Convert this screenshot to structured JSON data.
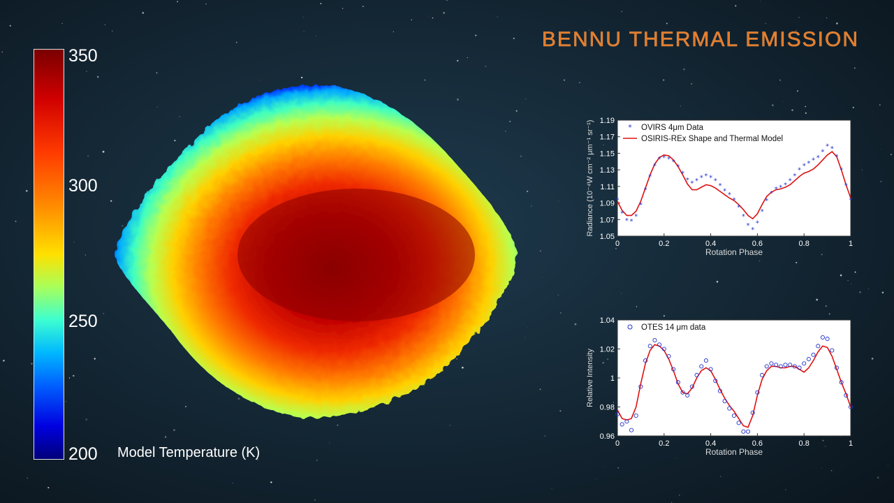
{
  "title": "BENNU THERMAL EMISSION",
  "colorbar": {
    "label": "Model Temperature (K)",
    "ticks": [
      "350",
      "300",
      "250",
      "200"
    ],
    "colors": [
      "#7a0000",
      "#d00000",
      "#ff3a00",
      "#ff8a00",
      "#ffe000",
      "#a8ff5a",
      "#3dffd0",
      "#00b8ff",
      "#0060ff",
      "#0000e0",
      "#00007a"
    ]
  },
  "chart_data": [
    {
      "type": "line",
      "xlabel": "Rotation Phase",
      "ylabel": "Radiance (10⁻⁴W cm⁻² μm⁻¹ sr⁻¹)",
      "xlim": [
        0,
        1
      ],
      "ylim": [
        1.05,
        1.19
      ],
      "xticks": [
        "0",
        "0.2",
        "0.4",
        "0.6",
        "0.8",
        "1"
      ],
      "yticks": [
        "1.05",
        "1.07",
        "1.09",
        "1.11",
        "1.13",
        "1.15",
        "1.17",
        "1.19"
      ],
      "legend_position": "top-left",
      "series": [
        {
          "name": "OVIRS 4μm Data",
          "style": "asterisk",
          "color": "#2233cc",
          "x": [
            0,
            0.02,
            0.04,
            0.06,
            0.08,
            0.1,
            0.12,
            0.14,
            0.16,
            0.18,
            0.2,
            0.22,
            0.24,
            0.26,
            0.28,
            0.3,
            0.32,
            0.34,
            0.36,
            0.38,
            0.4,
            0.42,
            0.44,
            0.46,
            0.48,
            0.5,
            0.52,
            0.54,
            0.56,
            0.58,
            0.6,
            0.62,
            0.64,
            0.66,
            0.68,
            0.7,
            0.72,
            0.74,
            0.76,
            0.78,
            0.8,
            0.82,
            0.84,
            0.86,
            0.88,
            0.9,
            0.92,
            0.94,
            0.96,
            0.98,
            1
          ],
          "y": [
            1.094,
            1.078,
            1.069,
            1.068,
            1.074,
            1.088,
            1.106,
            1.122,
            1.135,
            1.143,
            1.145,
            1.143,
            1.14,
            1.134,
            1.126,
            1.118,
            1.114,
            1.117,
            1.121,
            1.123,
            1.121,
            1.117,
            1.111,
            1.105,
            1.1,
            1.094,
            1.085,
            1.074,
            1.063,
            1.058,
            1.066,
            1.08,
            1.093,
            1.102,
            1.107,
            1.109,
            1.112,
            1.117,
            1.123,
            1.13,
            1.135,
            1.138,
            1.142,
            1.145,
            1.152,
            1.159,
            1.156,
            1.146,
            1.13,
            1.111,
            1.094
          ]
        },
        {
          "name": "OSIRIS-REx Shape and Thermal Model",
          "style": "line",
          "color": "#dd1111",
          "x": [
            0,
            0.02,
            0.04,
            0.06,
            0.08,
            0.1,
            0.12,
            0.14,
            0.16,
            0.18,
            0.2,
            0.22,
            0.24,
            0.26,
            0.28,
            0.3,
            0.32,
            0.34,
            0.36,
            0.38,
            0.4,
            0.42,
            0.44,
            0.46,
            0.48,
            0.5,
            0.52,
            0.54,
            0.56,
            0.58,
            0.6,
            0.62,
            0.64,
            0.66,
            0.68,
            0.7,
            0.72,
            0.74,
            0.76,
            0.78,
            0.8,
            0.82,
            0.84,
            0.86,
            0.88,
            0.9,
            0.92,
            0.94,
            0.96,
            0.98,
            1
          ],
          "y": [
            1.092,
            1.081,
            1.075,
            1.075,
            1.08,
            1.092,
            1.108,
            1.124,
            1.137,
            1.145,
            1.148,
            1.147,
            1.142,
            1.134,
            1.124,
            1.113,
            1.106,
            1.106,
            1.109,
            1.112,
            1.111,
            1.108,
            1.104,
            1.1,
            1.096,
            1.093,
            1.088,
            1.082,
            1.075,
            1.071,
            1.077,
            1.088,
            1.098,
            1.103,
            1.106,
            1.107,
            1.109,
            1.112,
            1.117,
            1.122,
            1.126,
            1.128,
            1.131,
            1.136,
            1.142,
            1.148,
            1.152,
            1.146,
            1.13,
            1.112,
            1.096
          ]
        }
      ]
    },
    {
      "type": "scatter",
      "xlabel": "Rotation Phase",
      "ylabel": "Relative Intensity",
      "xlim": [
        0,
        1
      ],
      "ylim": [
        0.96,
        1.04
      ],
      "xticks": [
        "0",
        "0.2",
        "0.4",
        "0.6",
        "0.8",
        "1"
      ],
      "yticks": [
        "0.96",
        "0.98",
        "1",
        "1.02",
        "1.04"
      ],
      "legend_position": "top-left",
      "series": [
        {
          "name": "OTES 14 μm data",
          "style": "circle",
          "color": "#2233cc",
          "x": [
            0,
            0.02,
            0.04,
            0.06,
            0.08,
            0.1,
            0.12,
            0.14,
            0.16,
            0.18,
            0.2,
            0.22,
            0.24,
            0.26,
            0.28,
            0.3,
            0.32,
            0.34,
            0.36,
            0.38,
            0.4,
            0.42,
            0.44,
            0.46,
            0.48,
            0.5,
            0.52,
            0.54,
            0.56,
            0.58,
            0.6,
            0.62,
            0.64,
            0.66,
            0.68,
            0.7,
            0.72,
            0.74,
            0.76,
            0.78,
            0.8,
            0.82,
            0.84,
            0.86,
            0.88,
            0.9,
            0.92,
            0.94,
            0.96,
            0.98,
            1
          ],
          "y": [
            0.975,
            0.968,
            0.97,
            0.964,
            0.974,
            0.994,
            1.012,
            1.022,
            1.026,
            1.023,
            1.02,
            1.015,
            1.006,
            0.997,
            0.99,
            0.988,
            0.994,
            1.002,
            1.008,
            1.012,
            1.006,
            0.998,
            0.991,
            0.984,
            0.979,
            0.974,
            0.969,
            0.963,
            0.963,
            0.976,
            0.99,
            1.002,
            1.008,
            1.01,
            1.009,
            1.008,
            1.009,
            1.009,
            1.008,
            1.007,
            1.01,
            1.013,
            1.016,
            1.022,
            1.028,
            1.027,
            1.019,
            1.007,
            0.997,
            0.988,
            0.98
          ]
        },
        {
          "name": "",
          "style": "line",
          "color": "#dd1111",
          "x": [
            0,
            0.02,
            0.04,
            0.06,
            0.08,
            0.1,
            0.12,
            0.14,
            0.16,
            0.18,
            0.2,
            0.22,
            0.24,
            0.26,
            0.28,
            0.3,
            0.32,
            0.34,
            0.36,
            0.38,
            0.4,
            0.42,
            0.44,
            0.46,
            0.48,
            0.5,
            0.52,
            0.54,
            0.56,
            0.58,
            0.6,
            0.62,
            0.64,
            0.66,
            0.68,
            0.7,
            0.72,
            0.74,
            0.76,
            0.78,
            0.8,
            0.82,
            0.84,
            0.86,
            0.88,
            0.9,
            0.92,
            0.94,
            0.96,
            0.98,
            1
          ],
          "y": [
            0.978,
            0.972,
            0.971,
            0.972,
            0.98,
            0.996,
            1.01,
            1.019,
            1.023,
            1.022,
            1.019,
            1.013,
            1.005,
            0.996,
            0.99,
            0.989,
            0.993,
            1.0,
            1.005,
            1.007,
            1.005,
            0.999,
            0.992,
            0.986,
            0.981,
            0.977,
            0.972,
            0.967,
            0.966,
            0.974,
            0.988,
            0.999,
            1.005,
            1.008,
            1.008,
            1.007,
            1.007,
            1.008,
            1.008,
            1.006,
            1.004,
            1.007,
            1.012,
            1.018,
            1.022,
            1.021,
            1.015,
            1.006,
            0.997,
            0.989,
            0.98
          ]
        }
      ]
    }
  ]
}
